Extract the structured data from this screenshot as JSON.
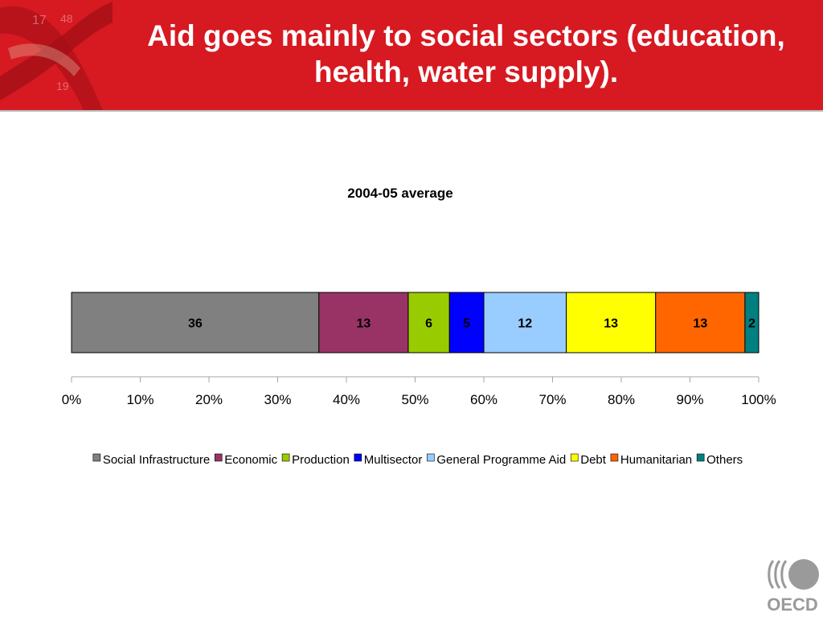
{
  "slide": {
    "title_line1": "Aid goes mainly to social sectors (education,",
    "title_line2": "health, water supply).",
    "logo_text": "OECD",
    "brand_color": "#d71921"
  },
  "chart_data": {
    "type": "bar",
    "orientation": "horizontal",
    "stacked": true,
    "title": "2004-05 average",
    "xlabel": "",
    "ylabel": "",
    "xlim": [
      0,
      100
    ],
    "x_tick_labels": [
      "0%",
      "10%",
      "20%",
      "30%",
      "40%",
      "50%",
      "60%",
      "70%",
      "80%",
      "90%",
      "100%"
    ],
    "categories": [
      "2004-05 average"
    ],
    "series": [
      {
        "name": "Social Infrastructure",
        "values": [
          36
        ],
        "color": "#808080"
      },
      {
        "name": "Economic",
        "values": [
          13
        ],
        "color": "#993366"
      },
      {
        "name": "Production",
        "values": [
          6
        ],
        "color": "#99cc00"
      },
      {
        "name": "Multisector",
        "values": [
          5
        ],
        "color": "#0000ff"
      },
      {
        "name": "General Programme Aid",
        "values": [
          12
        ],
        "color": "#99ccff"
      },
      {
        "name": "Debt",
        "values": [
          13
        ],
        "color": "#ffff00"
      },
      {
        "name": "Humanitarian",
        "values": [
          13
        ],
        "color": "#ff6600"
      },
      {
        "name": "Others",
        "values": [
          2
        ],
        "color": "#008080"
      }
    ],
    "grid": false,
    "legend_position": "bottom"
  }
}
